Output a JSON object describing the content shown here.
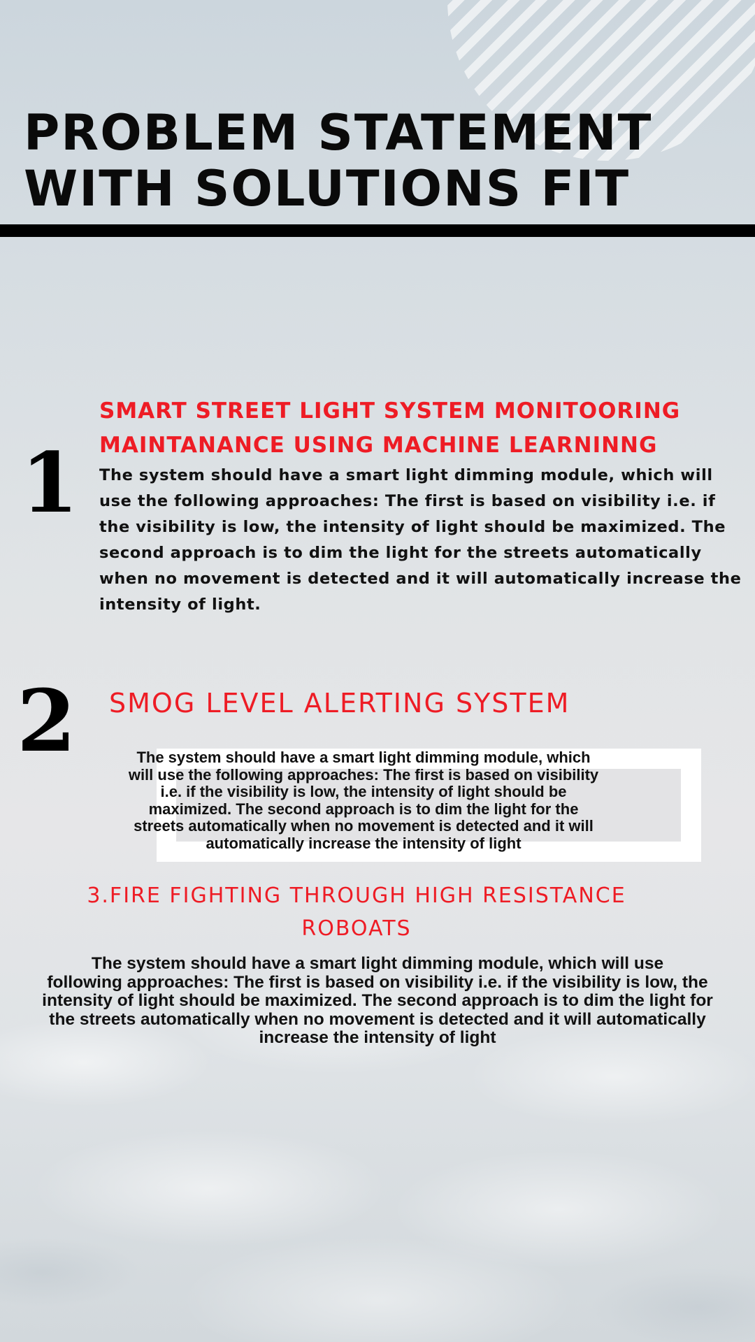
{
  "page": {
    "title": "PROBLEM STATEMENT\nWITH SOLUTIONS FIT",
    "colors": {
      "accent_red": "#ee1c25",
      "text_dark": "#111111",
      "rule": "#000000"
    }
  },
  "sections": [
    {
      "number": "1",
      "heading": "SMART STREET LIGHT SYSTEM MONITOORING\nMAINTANANCE USING MACHINE LEARNINNG",
      "body": "The system should have a smart light dimming module, which will\nuse the following approaches: The first is based on visibility i.e. if\nthe visibility is low, the intensity of light should be maximized. The\nsecond approach is to dim the light for the streets automatically\nwhen no movement is detected and it will automatically increase the\nintensity of light."
    },
    {
      "number": "2",
      "heading": "SMOG LEVEL ALERTING SYSTEM",
      "body": "The  system  should  have a smart light dimming module, which\nwill use the following approaches: The first is based on visibility\ni.e. if the visibility is low, the intensity of light should be\nmaximized. The second approach is to dim the light for the\nstreets automatically when no movement is detected and it will\nautomatically increase the intensity of light"
    },
    {
      "heading": "3.FIRE FIGHTING THROUGH HIGH RESISTANCE\nROBOATS",
      "body": "The system should have a smart light dimming module, which will use\nfollowing approaches: The first is based on visibility i.e. if the visibility is low, the\nintensity of light should be maximized. The second approach is to dim the light for\nthe streets automatically when no movement is detected and it will automatically\nincrease the intensity of light"
    }
  ]
}
